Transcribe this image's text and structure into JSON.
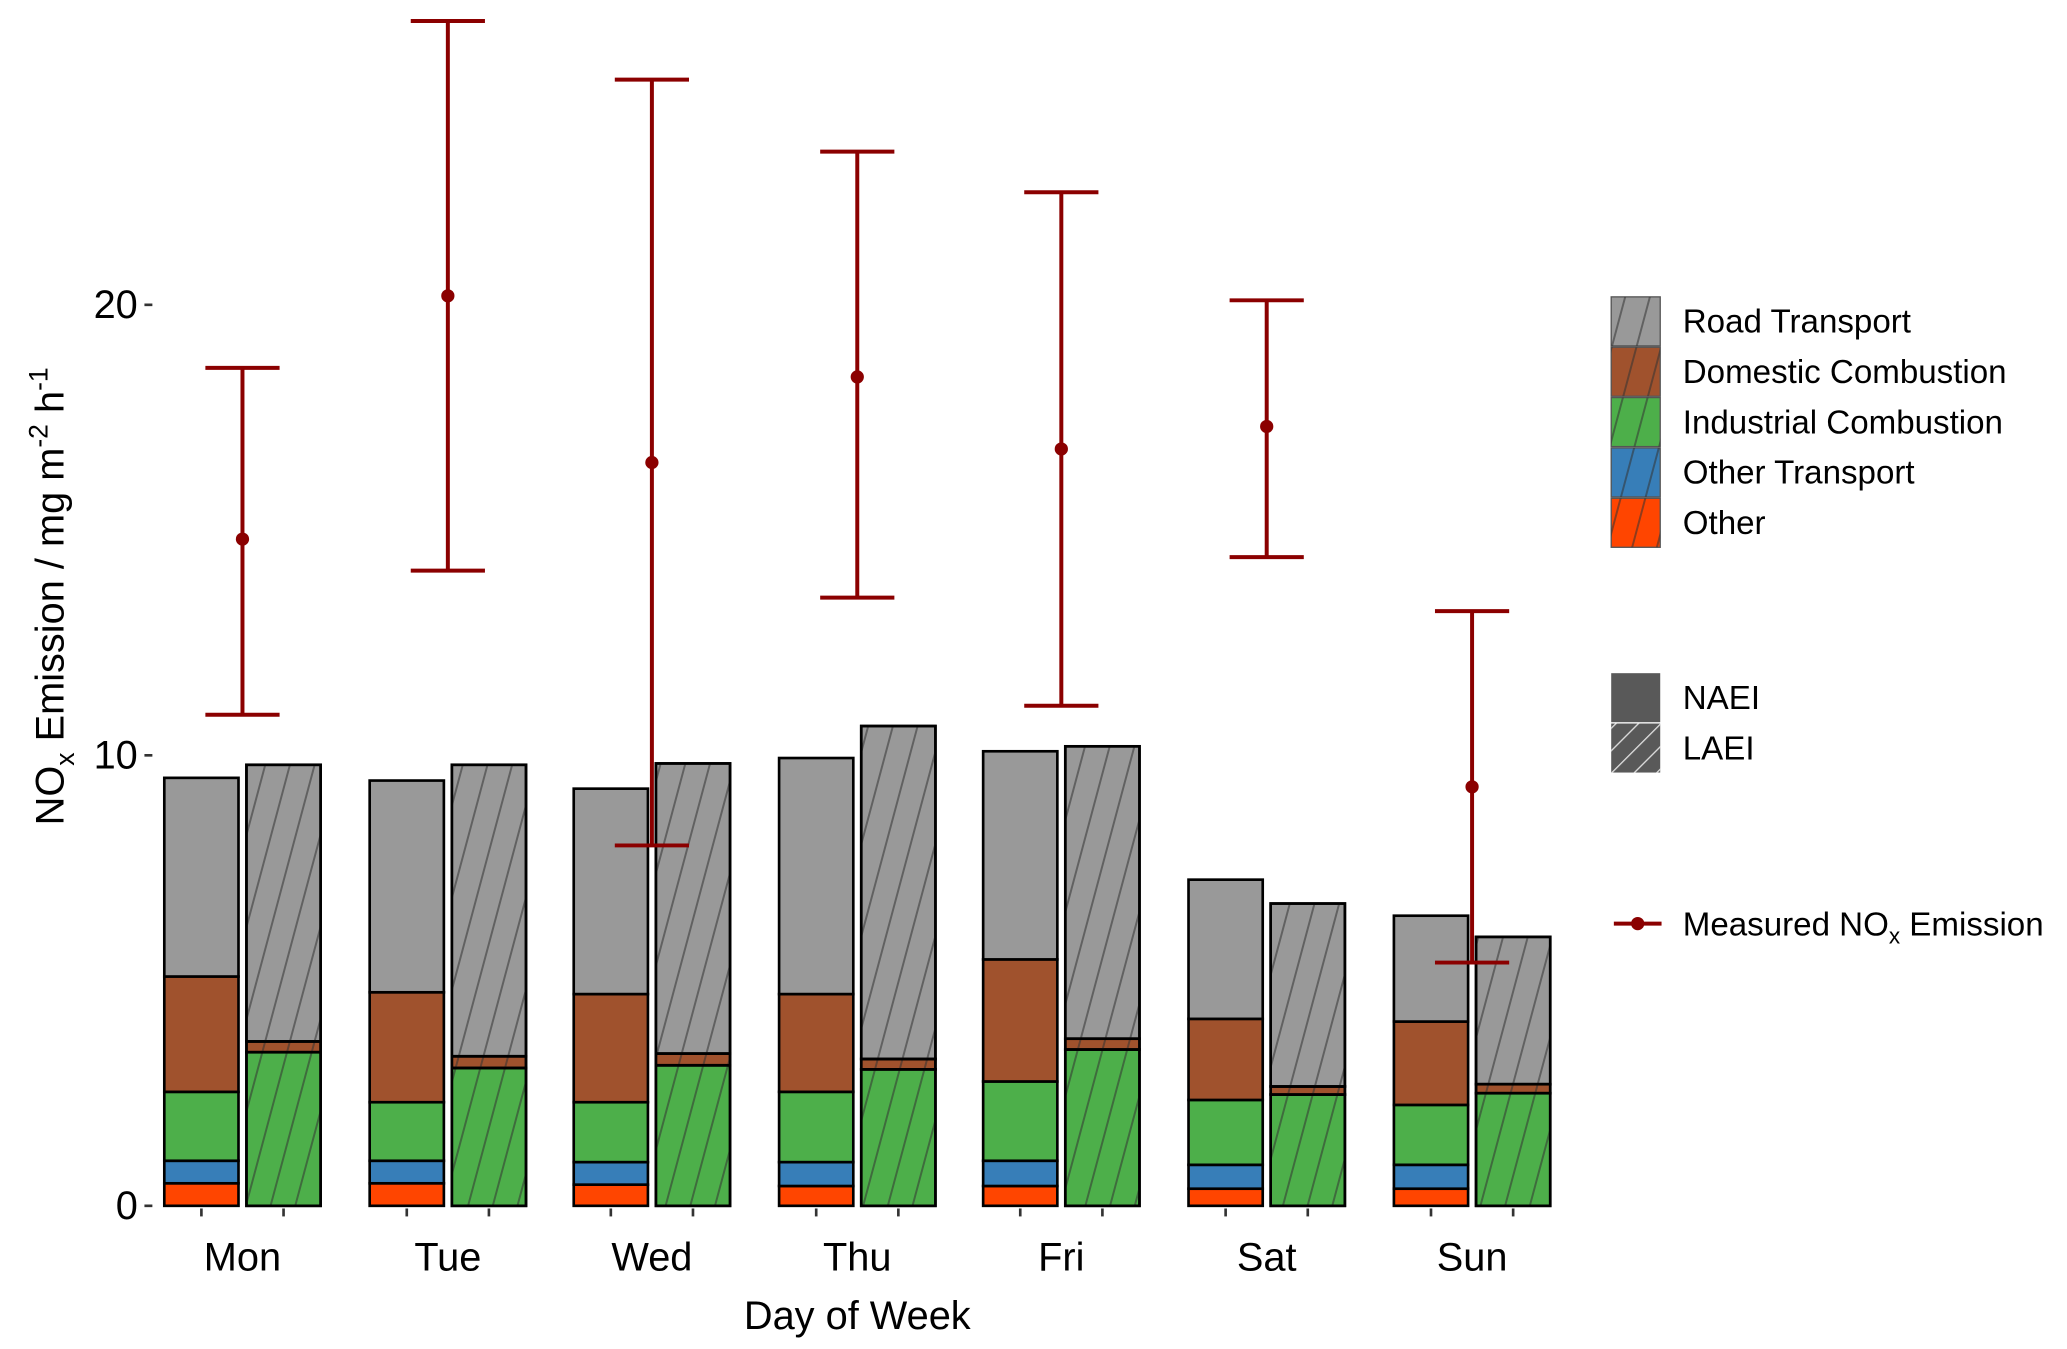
{
  "chart_data": {
    "type": "bar",
    "subtype": "stacked-grouped-with-errorbars",
    "xlabel": "Day of Week",
    "ylabel": {
      "main": "NO",
      "sub": "x",
      "rest": " Emission / mg m",
      "sup1": "-2",
      "mid": " h",
      "sup2": "-1"
    },
    "ylim": [
      0,
      27
    ],
    "yticks": [
      "0",
      "10",
      "20"
    ],
    "ytick_values": [
      0,
      10,
      20
    ],
    "grid": false,
    "categories": [
      "Mon",
      "Tue",
      "Wed",
      "Thu",
      "Fri",
      "Sat",
      "Sun"
    ],
    "sectors": [
      {
        "name": "Other",
        "color": "#FF4500"
      },
      {
        "name": "Other Transport",
        "color": "#377EB8"
      },
      {
        "name": "Industrial Combustion",
        "color": "#4DAF4A"
      },
      {
        "name": "Domestic Combustion",
        "color": "#A0522D"
      },
      {
        "name": "Road Transport",
        "color": "#999999"
      }
    ],
    "inventories": {
      "NAEI": {
        "Other": [
          0.5,
          0.5,
          0.47,
          0.44,
          0.44,
          0.38,
          0.38
        ],
        "Other Transport": [
          0.5,
          0.5,
          0.5,
          0.53,
          0.56,
          0.53,
          0.53
        ],
        "Industrial Combustion": [
          1.53,
          1.3,
          1.33,
          1.56,
          1.76,
          1.44,
          1.33
        ],
        "Domestic Combustion": [
          2.56,
          2.44,
          2.4,
          2.17,
          2.71,
          1.8,
          1.85
        ],
        "Road Transport": [
          4.41,
          4.7,
          4.56,
          5.24,
          4.62,
          3.09,
          2.35
        ]
      },
      "LAEI": {
        "Other": [
          0,
          0,
          0,
          0,
          0,
          0,
          0
        ],
        "Other Transport": [
          0,
          0,
          0,
          0,
          0,
          0,
          0
        ],
        "Industrial Combustion": [
          3.41,
          3.06,
          3.12,
          3.03,
          3.47,
          2.47,
          2.5
        ],
        "Domestic Combustion": [
          0.24,
          0.26,
          0.26,
          0.23,
          0.24,
          0.18,
          0.2
        ],
        "Road Transport": [
          6.14,
          6.47,
          6.44,
          7.39,
          6.49,
          4.06,
          3.27
        ]
      }
    },
    "measured": {
      "name": "Measured NOx Emission",
      "color": "#8B0000",
      "mean": [
        14.8,
        20.2,
        16.5,
        18.4,
        16.8,
        17.3,
        9.3
      ],
      "upper": [
        18.6,
        26.3,
        25.0,
        23.4,
        22.5,
        20.1,
        13.2
      ],
      "lower": [
        10.9,
        14.1,
        8.0,
        13.5,
        11.1,
        14.4,
        5.4
      ]
    },
    "legend": {
      "placement": "right",
      "sectors": [
        "Road Transport",
        "Domestic Combustion",
        "Industrial Combustion",
        "Other Transport",
        "Other"
      ],
      "inventories": [
        "NAEI",
        "LAEI"
      ],
      "measured": {
        "main": "Measured NO",
        "sub": "x",
        "rest": " Emission"
      }
    }
  }
}
